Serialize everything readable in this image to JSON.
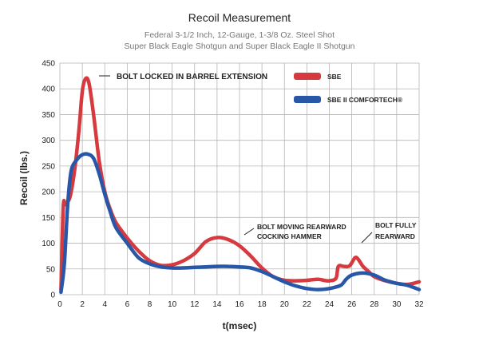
{
  "chart_data": {
    "type": "line",
    "title": "Recoil Measurement",
    "subtitle_lines": [
      "Federal 3-1/2 Inch, 12-Gauge, 1-3/8 Oz. Steel Shot",
      "Super Black Eagle Shotgun and Super Black Eagle II Shotgun"
    ],
    "xlabel": "t(msec)",
    "ylabel": "Recoil (lbs.)",
    "xlim": [
      0,
      32
    ],
    "ylim": [
      0,
      450
    ],
    "x_ticks": [
      0,
      2,
      4,
      6,
      8,
      10,
      12,
      14,
      16,
      18,
      20,
      22,
      24,
      26,
      28,
      30,
      32
    ],
    "y_ticks": [
      0,
      50,
      100,
      150,
      200,
      250,
      300,
      350,
      400,
      450
    ],
    "grid": true,
    "legend_position": "top-right",
    "series": [
      {
        "name": "SBE",
        "color": "#d63a3f",
        "points": [
          [
            0.1,
            10
          ],
          [
            0.3,
            170
          ],
          [
            0.5,
            175
          ],
          [
            0.9,
            190
          ],
          [
            1.3,
            240
          ],
          [
            1.7,
            320
          ],
          [
            2.0,
            395
          ],
          [
            2.3,
            420
          ],
          [
            2.6,
            410
          ],
          [
            3.0,
            350
          ],
          [
            3.5,
            260
          ],
          [
            4.0,
            200
          ],
          [
            4.5,
            165
          ],
          [
            5.0,
            140
          ],
          [
            6.0,
            110
          ],
          [
            7.0,
            85
          ],
          [
            8.0,
            66
          ],
          [
            9.0,
            57
          ],
          [
            10.0,
            58
          ],
          [
            11.0,
            66
          ],
          [
            12.0,
            80
          ],
          [
            13.0,
            103
          ],
          [
            14.0,
            111
          ],
          [
            15.0,
            107
          ],
          [
            16.0,
            95
          ],
          [
            17.0,
            75
          ],
          [
            18.0,
            52
          ],
          [
            19.0,
            35
          ],
          [
            20.0,
            28
          ],
          [
            21.0,
            27
          ],
          [
            22.0,
            28
          ],
          [
            23.0,
            30
          ],
          [
            23.5,
            28
          ],
          [
            24.0,
            27
          ],
          [
            24.6,
            32
          ],
          [
            24.8,
            55
          ],
          [
            25.3,
            55
          ],
          [
            25.8,
            56
          ],
          [
            26.3,
            72
          ],
          [
            26.6,
            68
          ],
          [
            27.0,
            55
          ],
          [
            27.5,
            45
          ],
          [
            28.0,
            35
          ],
          [
            29.0,
            27
          ],
          [
            30.0,
            22
          ],
          [
            31.0,
            20
          ],
          [
            32.0,
            25
          ]
        ]
      },
      {
        "name": "SBE II COMFORTECH®",
        "color": "#2857a8",
        "points": [
          [
            0.1,
            5
          ],
          [
            0.4,
            60
          ],
          [
            0.7,
            175
          ],
          [
            1.0,
            240
          ],
          [
            1.5,
            262
          ],
          [
            2.0,
            272
          ],
          [
            2.5,
            273
          ],
          [
            3.0,
            265
          ],
          [
            3.5,
            235
          ],
          [
            4.0,
            195
          ],
          [
            4.5,
            160
          ],
          [
            5.0,
            130
          ],
          [
            6.0,
            100
          ],
          [
            7.0,
            72
          ],
          [
            8.0,
            60
          ],
          [
            9.0,
            54
          ],
          [
            10.0,
            52
          ],
          [
            11.0,
            52
          ],
          [
            12.0,
            53
          ],
          [
            13.0,
            54
          ],
          [
            14.0,
            55
          ],
          [
            15.0,
            55
          ],
          [
            16.0,
            54
          ],
          [
            17.0,
            52
          ],
          [
            18.0,
            45
          ],
          [
            19.0,
            35
          ],
          [
            20.0,
            25
          ],
          [
            21.0,
            17
          ],
          [
            22.0,
            12
          ],
          [
            23.0,
            10
          ],
          [
            24.0,
            12
          ],
          [
            25.0,
            18
          ],
          [
            25.5,
            30
          ],
          [
            26.0,
            38
          ],
          [
            27.0,
            42
          ],
          [
            28.0,
            38
          ],
          [
            29.0,
            28
          ],
          [
            30.0,
            22
          ],
          [
            31.0,
            18
          ],
          [
            32.0,
            10
          ]
        ]
      }
    ],
    "annotations": [
      {
        "text": "BOLT LOCKED IN BARREL EXTENSION"
      },
      {
        "lines": [
          "BOLT MOVING REARWARD",
          "COCKING HAMMER"
        ]
      },
      {
        "lines": [
          "BOLT  FULLY",
          "REARWARD"
        ]
      }
    ]
  }
}
